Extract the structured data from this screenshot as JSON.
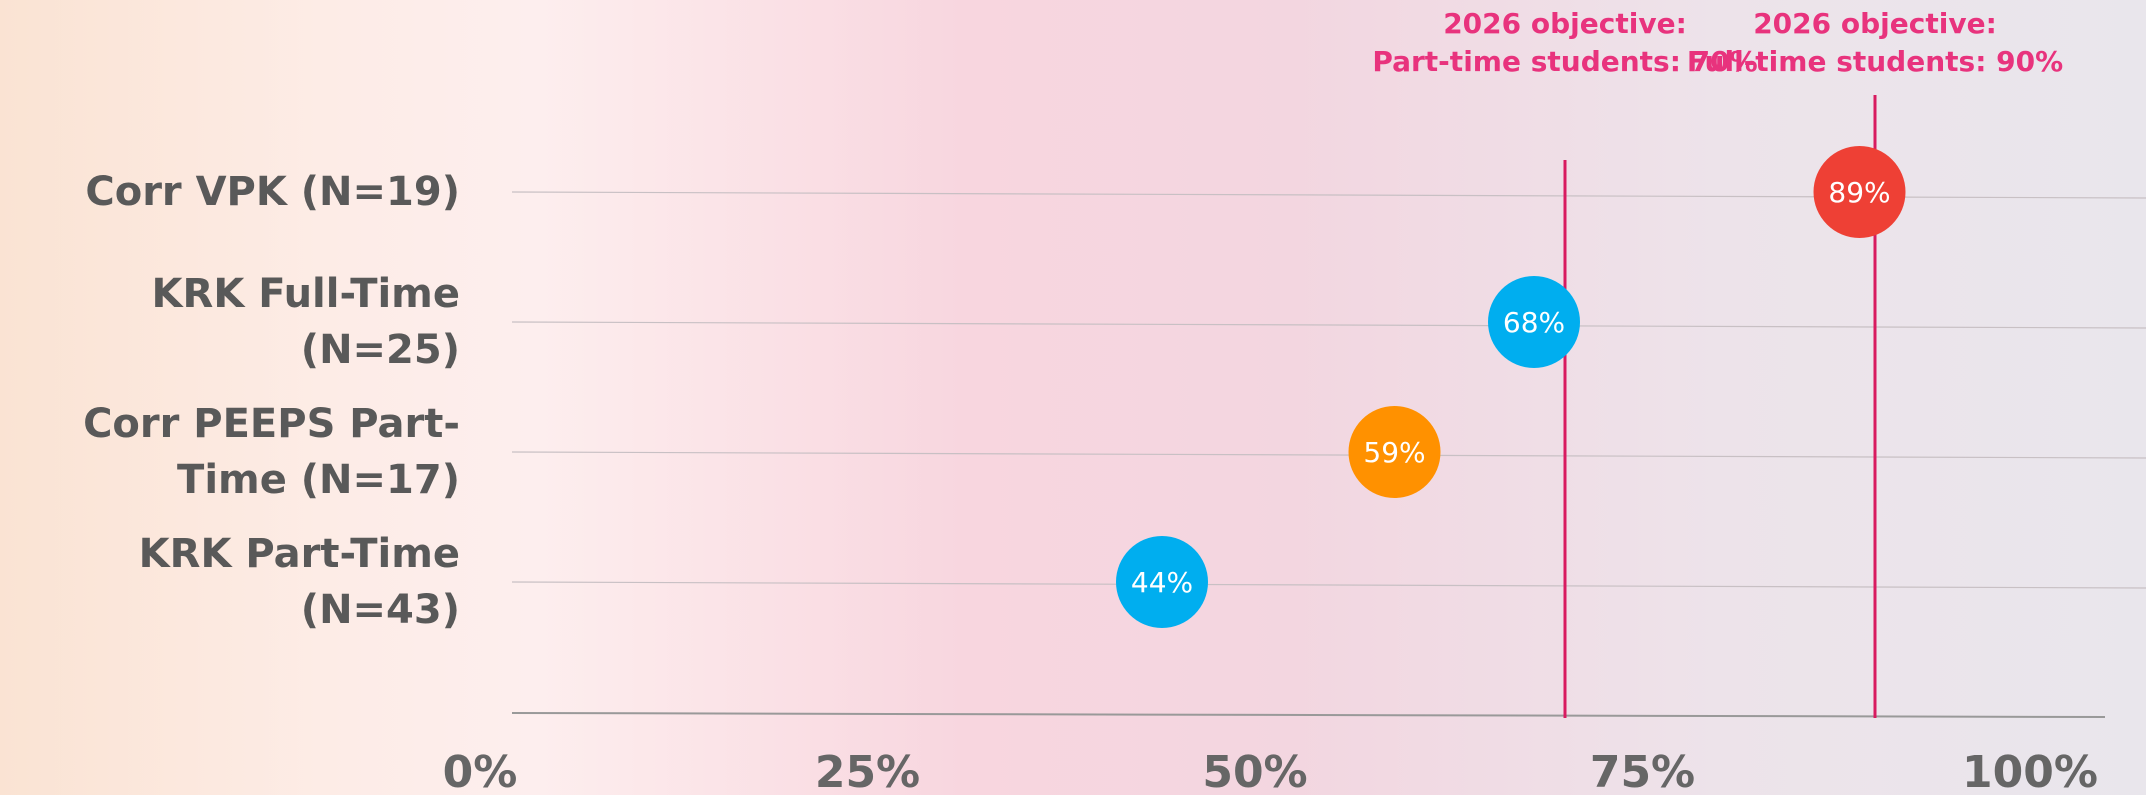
{
  "chart_data": {
    "type": "dot",
    "categories": [
      "Corr VPK (N=19)",
      "KRK Full-Time (N=25)",
      "Corr PEEPS Part-Time (N=17)",
      "KRK Part-Time (N=43)"
    ],
    "values": [
      89,
      68,
      59,
      44
    ],
    "value_labels": [
      "89%",
      "68%",
      "59%",
      "44%"
    ],
    "colors": [
      "#ee4035",
      "#00aeef",
      "#ff9100",
      "#00aeef"
    ],
    "xlim": [
      0,
      100
    ],
    "xticks": [
      {
        "value": 0,
        "label": "0%"
      },
      {
        "value": 25,
        "label": "25%"
      },
      {
        "value": 50,
        "label": "50%"
      },
      {
        "value": 75,
        "label": "75%"
      },
      {
        "value": 100,
        "label": "100%"
      }
    ],
    "grid": true,
    "reference_lines": [
      {
        "value": 70,
        "label": [
          "2026 objective:",
          "Part-time students: 70%"
        ],
        "color": "#d81b60"
      },
      {
        "value": 90,
        "label": [
          "2026 objective:",
          "Full-time students: 90%"
        ],
        "color": "#d81b60"
      }
    ]
  }
}
